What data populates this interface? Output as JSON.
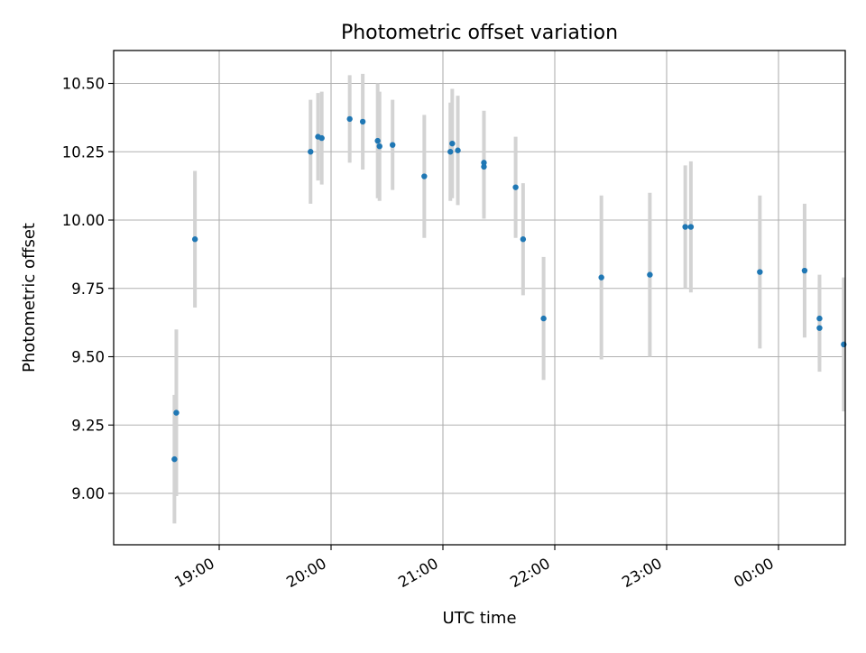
{
  "chart_data": {
    "type": "scatter",
    "title": "Photometric offset variation",
    "xlabel": "UTC time",
    "ylabel": "Photometric offset",
    "grid": true,
    "x_axis_type": "time",
    "xlim": [
      "18:26",
      "00:35"
    ],
    "ylim": [
      8.88,
      10.62
    ],
    "x_ticks": [
      {
        "time": "19:00",
        "label": "19:00"
      },
      {
        "time": "20:00",
        "label": "20:00"
      },
      {
        "time": "21:00",
        "label": "21:00"
      },
      {
        "time": "22:00",
        "label": "22:00"
      },
      {
        "time": "23:00",
        "label": "23:00"
      },
      {
        "time": "00:00",
        "label": "00:00"
      }
    ],
    "y_ticks": [
      {
        "value": 9.0,
        "label": "9.00"
      },
      {
        "value": 9.25,
        "label": "9.25"
      },
      {
        "value": 9.5,
        "label": "9.50"
      },
      {
        "value": 9.75,
        "label": "9.75"
      },
      {
        "value": 10.0,
        "label": "10.00"
      },
      {
        "value": 10.25,
        "label": "10.25"
      },
      {
        "value": 10.5,
        "label": "10.50"
      }
    ],
    "marker_color": "#1f77b4",
    "errorbar_color": "#d3d3d3",
    "points": [
      {
        "time": "18:36",
        "y": 9.125,
        "err": 0.235
      },
      {
        "time": "18:37",
        "y": 9.295,
        "err": 0.305
      },
      {
        "time": "18:47",
        "y": 9.93,
        "err": 0.25
      },
      {
        "time": "19:49",
        "y": 10.25,
        "err": 0.19
      },
      {
        "time": "19:53",
        "y": 10.305,
        "err": 0.16
      },
      {
        "time": "19:55",
        "y": 10.3,
        "err": 0.17
      },
      {
        "time": "20:10",
        "y": 10.37,
        "err": 0.16
      },
      {
        "time": "20:17",
        "y": 10.36,
        "err": 0.175
      },
      {
        "time": "20:25",
        "y": 10.29,
        "err": 0.21
      },
      {
        "time": "20:26",
        "y": 10.27,
        "err": 0.2
      },
      {
        "time": "20:33",
        "y": 10.275,
        "err": 0.165
      },
      {
        "time": "20:50",
        "y": 10.16,
        "err": 0.225
      },
      {
        "time": "21:04",
        "y": 10.25,
        "err": 0.18
      },
      {
        "time": "21:05",
        "y": 10.28,
        "err": 0.2
      },
      {
        "time": "21:08",
        "y": 10.255,
        "err": 0.2
      },
      {
        "time": "21:22",
        "y": 10.21,
        "err": 0.19
      },
      {
        "time": "21:22",
        "y": 10.195,
        "err": 0.19
      },
      {
        "time": "21:39",
        "y": 10.12,
        "err": 0.185
      },
      {
        "time": "21:43",
        "y": 9.93,
        "err": 0.205
      },
      {
        "time": "21:54",
        "y": 9.64,
        "err": 0.225
      },
      {
        "time": "22:25",
        "y": 9.79,
        "err": 0.3
      },
      {
        "time": "22:51",
        "y": 9.8,
        "err": 0.3
      },
      {
        "time": "23:10",
        "y": 9.975,
        "err": 0.225
      },
      {
        "time": "23:13",
        "y": 9.975,
        "err": 0.24
      },
      {
        "time": "23:50",
        "y": 9.81,
        "err": 0.28
      },
      {
        "time": "00:14",
        "y": 9.815,
        "err": 0.245
      },
      {
        "time": "00:22",
        "y": 9.64,
        "err": 0.16
      },
      {
        "time": "00:22",
        "y": 9.605,
        "err": 0.16
      },
      {
        "time": "00:35",
        "y": 9.545,
        "err": 0.245
      }
    ]
  }
}
